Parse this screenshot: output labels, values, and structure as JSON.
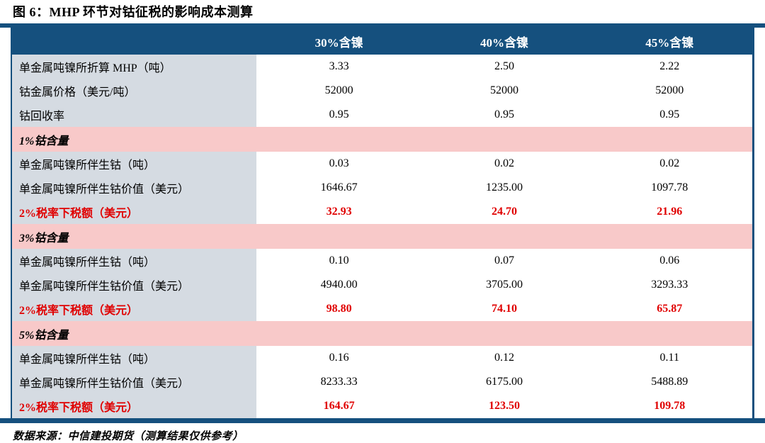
{
  "title": "图 6：MHP 环节对钴征税的影响成本测算",
  "footer": "数据来源：中信建投期货（测算结果仅供参考）",
  "colors": {
    "navy": "#15507E",
    "label_bg": "#D5DBE2",
    "section_bg": "#F8C9C9",
    "tax_red": "#E00000"
  },
  "table": {
    "columns": [
      "",
      "30%含镍",
      "40%含镍",
      "45%含镍"
    ],
    "rows": [
      {
        "type": "data",
        "label": "单金属吨镍所折算 MHP（吨）",
        "values": [
          "3.33",
          "2.50",
          "2.22"
        ]
      },
      {
        "type": "data",
        "label": "钴金属价格（美元/吨）",
        "values": [
          "52000",
          "52000",
          "52000"
        ]
      },
      {
        "type": "data",
        "label": "钴回收率",
        "values": [
          "0.95",
          "0.95",
          "0.95"
        ]
      },
      {
        "type": "section",
        "label": "1%钴含量",
        "values": [
          "",
          "",
          ""
        ]
      },
      {
        "type": "data",
        "label": "单金属吨镍所伴生钴（吨）",
        "values": [
          "0.03",
          "0.02",
          "0.02"
        ]
      },
      {
        "type": "data",
        "label": "单金属吨镍所伴生钴价值（美元）",
        "values": [
          "1646.67",
          "1235.00",
          "1097.78"
        ]
      },
      {
        "type": "tax",
        "label": "2%税率下税额（美元）",
        "values": [
          "32.93",
          "24.70",
          "21.96"
        ]
      },
      {
        "type": "section",
        "label": "3%钴含量",
        "values": [
          "",
          "",
          ""
        ]
      },
      {
        "type": "data",
        "label": "单金属吨镍所伴生钴（吨）",
        "values": [
          "0.10",
          "0.07",
          "0.06"
        ]
      },
      {
        "type": "data",
        "label": "单金属吨镍所伴生钴价值（美元）",
        "values": [
          "4940.00",
          "3705.00",
          "3293.33"
        ]
      },
      {
        "type": "tax",
        "label": "2%税率下税额（美元）",
        "values": [
          "98.80",
          "74.10",
          "65.87"
        ]
      },
      {
        "type": "section",
        "label": "5%钴含量",
        "values": [
          "",
          "",
          ""
        ]
      },
      {
        "type": "data",
        "label": "单金属吨镍所伴生钴（吨）",
        "values": [
          "0.16",
          "0.12",
          "0.11"
        ]
      },
      {
        "type": "data",
        "label": "单金属吨镍所伴生钴价值（美元）",
        "values": [
          "8233.33",
          "6175.00",
          "5488.89"
        ]
      },
      {
        "type": "tax",
        "label": "2%税率下税额（美元）",
        "values": [
          "164.67",
          "123.50",
          "109.78"
        ]
      }
    ]
  }
}
